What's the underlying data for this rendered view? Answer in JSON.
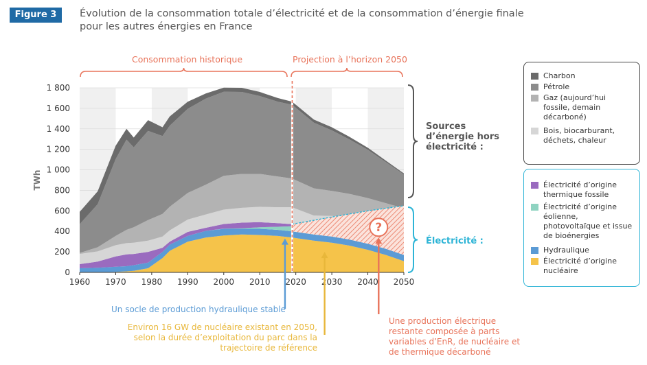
{
  "figure_label": "Figure 3",
  "title_line1": "Évolution de la consommation totale d’électricité et de la consommation d’énergie finale",
  "title_line2": "pour les autres énergies en France",
  "period_labels": {
    "historical": "Consommation historique",
    "projection": "Projection à l’horizon 2050"
  },
  "colors": {
    "charbon": "#6b6b6b",
    "petrole": "#8c8c8c",
    "gaz": "#b3b3b3",
    "bois": "#d6d6d6",
    "fossile": "#9a6bbf",
    "enr": "#8fd3c1",
    "hydro": "#5b9bd5",
    "nucleaire": "#f5c34a",
    "blue_accent": "#2db4d6",
    "red_accent": "#e8735a",
    "yellow_accent": "#e8b73a"
  },
  "sources_label": "Sources d’énergie hors électricité :",
  "electricite_label": "Électricité :",
  "legend_sources": [
    {
      "label": "Charbon",
      "icon": "swatch-dark-grey"
    },
    {
      "label": "Pétrole",
      "icon": "swatch-grey"
    },
    {
      "label": "Gaz (aujourd’hui fossile, demain décarboné)",
      "icon": "swatch-light-grey"
    },
    {
      "label": "Bois, biocarburant, déchets, chaleur",
      "icon": "swatch-pale-grey"
    }
  ],
  "legend_elec": [
    {
      "label": "Électricité d’origine thermique fossile",
      "icon": "swatch-purple"
    },
    {
      "label": "Électricité d’origine éolienne, photovoltaïque et issue de bioénergies",
      "icon": "swatch-mint"
    },
    {
      "label": "Hydraulique",
      "icon": "swatch-blue"
    },
    {
      "label": "Électricité d’origine nucléaire",
      "icon": "swatch-yellow"
    }
  ],
  "question_mark": "?",
  "notes": {
    "hydro": "Un socle de production hydraulique stable",
    "nuclear": "Environ 16 GW de nucléaire existant en 2050, selon la durée d’exploitation du parc dans la trajectoire de référence",
    "mix": "Une production électrique restante composée à parts variables d’EnR, de nucléaire et de thermique décarboné"
  },
  "chart_data": {
    "type": "area",
    "ylabel": "TWh",
    "xlabel": "",
    "xlim": [
      1960,
      2050
    ],
    "ylim": [
      0,
      1800
    ],
    "x_ticks": [
      1960,
      1970,
      1980,
      1990,
      2000,
      2010,
      2020,
      2030,
      2040,
      2050
    ],
    "y_ticks": [
      0,
      200,
      400,
      600,
      800,
      1000,
      1200,
      1400,
      1600,
      1800
    ],
    "y_tick_labels": [
      "0",
      "200",
      "400",
      "600",
      "800",
      "1 000",
      "1 200",
      "1 400",
      "1 600",
      "1 800"
    ],
    "projection_start": 2019,
    "stack_order": [
      "nucleaire",
      "hydro",
      "enr",
      "fossile",
      "bois",
      "gaz",
      "petrole",
      "charbon"
    ],
    "x": [
      1960,
      1965,
      1970,
      1973,
      1975,
      1979,
      1983,
      1985,
      1990,
      1995,
      2000,
      2005,
      2010,
      2015,
      2019,
      2025,
      2030,
      2035,
      2040,
      2045,
      2050
    ],
    "series": [
      {
        "name": "Électricité d’origine nucléaire",
        "key": "nucleaire",
        "values": [
          0,
          0,
          5,
          10,
          15,
          40,
          140,
          210,
          300,
          340,
          360,
          370,
          365,
          355,
          340,
          310,
          290,
          260,
          220,
          170,
          110
        ]
      },
      {
        "name": "Hydraulique",
        "key": "hydro",
        "values": [
          40,
          45,
          50,
          50,
          55,
          55,
          60,
          60,
          55,
          65,
          65,
          55,
          60,
          60,
          60,
          60,
          60,
          60,
          60,
          60,
          60
        ]
      },
      {
        "name": "Électricité d’origine éolienne, photovoltaïque et issue de bioénergies",
        "key": "enr",
        "values": [
          0,
          0,
          0,
          0,
          0,
          0,
          0,
          0,
          0,
          0,
          2,
          5,
          15,
          30,
          50,
          0,
          0,
          0,
          0,
          0,
          0
        ]
      },
      {
        "name": "Électricité d’origine thermique fossile",
        "key": "fossile",
        "values": [
          40,
          60,
          100,
          115,
          110,
          105,
          40,
          30,
          40,
          30,
          45,
          55,
          50,
          35,
          20,
          0,
          0,
          0,
          0,
          0,
          0
        ]
      },
      {
        "name": "Bois, biocarburant, déchets, chaleur",
        "key": "bois",
        "values": [
          100,
          100,
          110,
          110,
          110,
          110,
          110,
          110,
          120,
          130,
          140,
          145,
          150,
          155,
          165,
          185,
          200,
          215,
          235,
          250,
          270
        ]
      },
      {
        "name": "Gaz (aujourd’hui fossile, demain décarboné)",
        "key": "gaz",
        "values": [
          10,
          40,
          90,
          130,
          150,
          200,
          220,
          230,
          260,
          290,
          330,
          330,
          320,
          300,
          280,
          265,
          245,
          230,
          210,
          195,
          185
        ]
      },
      {
        "name": "Pétrole",
        "key": "petrole",
        "values": [
          280,
          420,
          750,
          880,
          780,
          870,
          760,
          790,
          820,
          840,
          820,
          800,
          760,
          730,
          720,
          640,
          590,
          530,
          470,
          400,
          330
        ]
      },
      {
        "name": "Charbon",
        "key": "charbon",
        "values": [
          120,
          125,
          130,
          105,
          95,
          105,
          85,
          90,
          70,
          50,
          40,
          40,
          40,
          35,
          30,
          30,
          30,
          25,
          20,
          15,
          10
        ]
      }
    ],
    "total_electricity_projection": {
      "x": [
        2019,
        2030,
        2040,
        2050
      ],
      "values": [
        470,
        540,
        600,
        650
      ]
    }
  }
}
